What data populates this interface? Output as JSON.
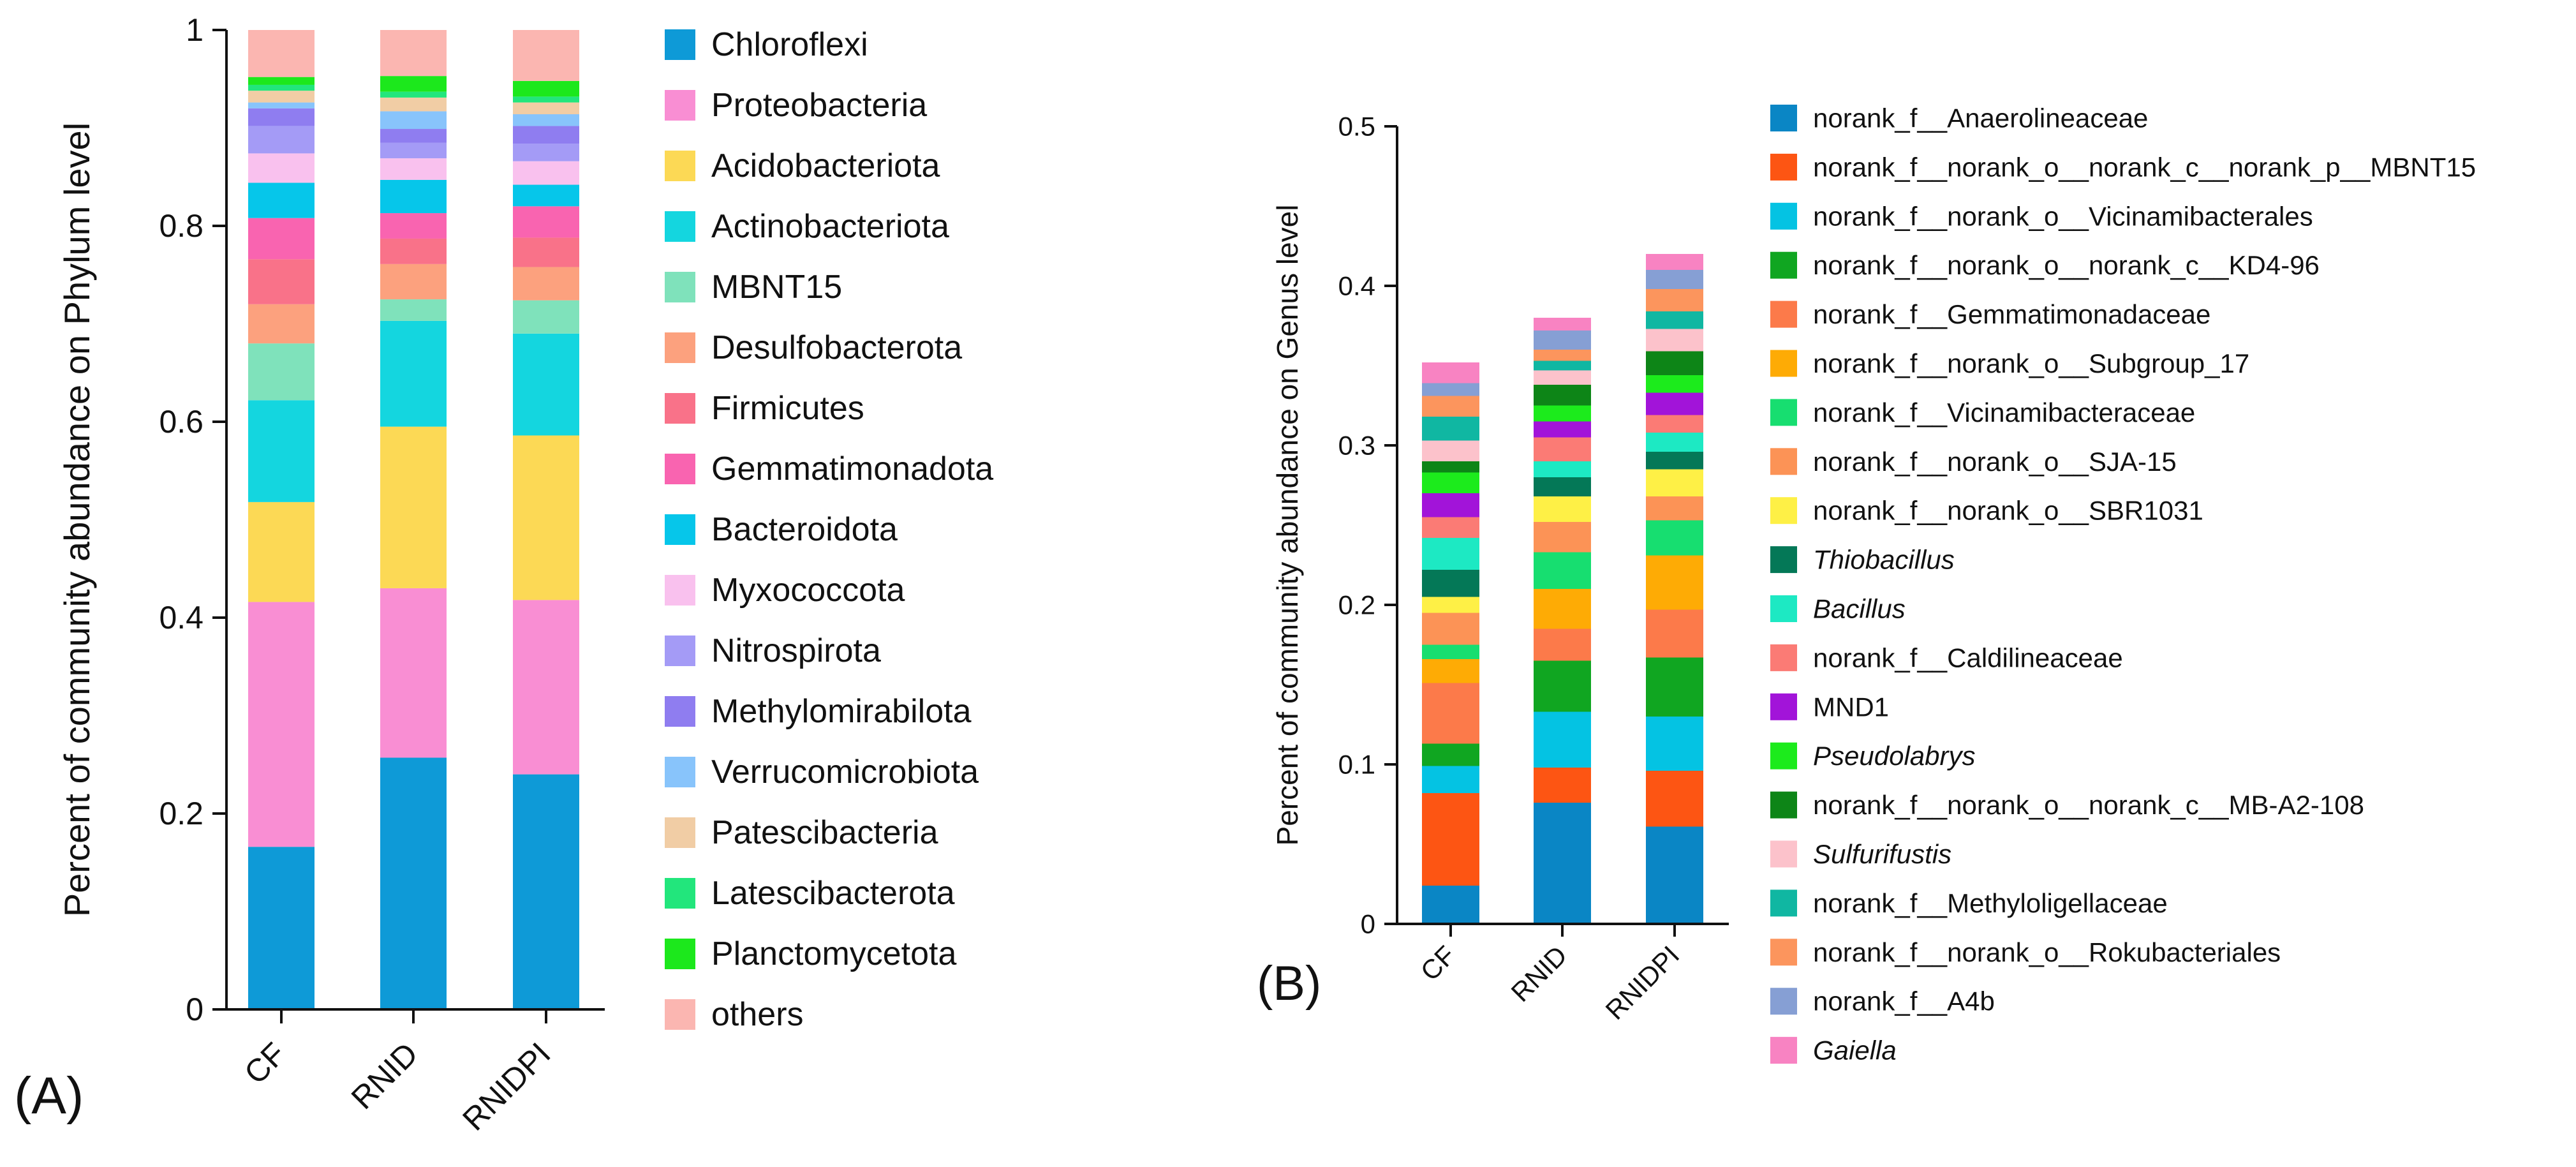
{
  "chart_data": [
    {
      "panel_label": "(A)",
      "type": "bar",
      "stacked": true,
      "ylabel": "Percent of community abundance on Phylum level",
      "xlabel": "",
      "ylim": [
        0,
        1
      ],
      "yticks": [
        0,
        0.2,
        0.4,
        0.6,
        0.8,
        1
      ],
      "ytick_labels": [
        "0",
        "0.2",
        "0.4",
        "0.6",
        "0.8",
        "1"
      ],
      "categories": [
        "CF",
        "RNID",
        "RNIDPI"
      ],
      "legend_position": "right",
      "series": [
        {
          "name": "Chloroflexi",
          "color": "#0e9ad7",
          "values": [
            0.166,
            0.257,
            0.24
          ]
        },
        {
          "name": "Proteobacteria",
          "color": "#f98ed3",
          "values": [
            0.25,
            0.173,
            0.178
          ]
        },
        {
          "name": "Acidobacteriota",
          "color": "#fcd955",
          "values": [
            0.102,
            0.165,
            0.168
          ]
        },
        {
          "name": "Actinobacteriota",
          "color": "#14d6df",
          "values": [
            0.104,
            0.108,
            0.104
          ]
        },
        {
          "name": "MBNT15",
          "color": "#7fe2bb",
          "values": [
            0.058,
            0.022,
            0.034
          ]
        },
        {
          "name": "Desulfobacterota",
          "color": "#fca17e",
          "values": [
            0.04,
            0.036,
            0.034
          ]
        },
        {
          "name": "Firmicutes",
          "color": "#f97289",
          "values": [
            0.046,
            0.026,
            0.03
          ]
        },
        {
          "name": "Gemmatimonadota",
          "color": "#f964b0",
          "values": [
            0.042,
            0.026,
            0.032
          ]
        },
        {
          "name": "Bacteroidota",
          "color": "#06c6ea",
          "values": [
            0.036,
            0.034,
            0.022
          ]
        },
        {
          "name": "Myxococcota",
          "color": "#f9c1ee",
          "values": [
            0.03,
            0.022,
            0.024
          ]
        },
        {
          "name": "Nitrospirota",
          "color": "#a49bf6",
          "values": [
            0.028,
            0.016,
            0.018
          ]
        },
        {
          "name": "Methylomirabilota",
          "color": "#8f7df0",
          "values": [
            0.018,
            0.014,
            0.018
          ]
        },
        {
          "name": "Verrucomicrobiota",
          "color": "#88c4fb",
          "values": [
            0.006,
            0.018,
            0.012
          ]
        },
        {
          "name": "Patescibacteria",
          "color": "#f1cda5",
          "values": [
            0.012,
            0.014,
            0.012
          ]
        },
        {
          "name": "Latescibacterota",
          "color": "#22e67c",
          "values": [
            0.006,
            0.006,
            0.006
          ]
        },
        {
          "name": "Planctomycetota",
          "color": "#1ce81c",
          "values": [
            0.008,
            0.016,
            0.016
          ]
        },
        {
          "name": "others",
          "color": "#fbb6b1",
          "values": [
            0.048,
            0.047,
            0.052
          ]
        }
      ]
    },
    {
      "panel_label": "(B)",
      "type": "bar",
      "stacked": true,
      "ylabel": "Percent of community abundance on Genus level",
      "xlabel": "",
      "ylim": [
        0,
        0.5
      ],
      "yticks": [
        0,
        0.1,
        0.2,
        0.3,
        0.4,
        0.5
      ],
      "ytick_labels": [
        "0",
        "0.1",
        "0.2",
        "0.3",
        "0.4",
        "0.5"
      ],
      "categories": [
        "CF",
        "RNID",
        "RNIDPI"
      ],
      "legend_position": "right",
      "series": [
        {
          "name": "norank_f__Anaerolineaceae",
          "color": "#0a86c5",
          "italic": false,
          "values": [
            0.024,
            0.076,
            0.061
          ]
        },
        {
          "name": "norank_f__norank_o__norank_c__norank_p__MBNT15",
          "color": "#fd5513",
          "italic": false,
          "values": [
            0.058,
            0.022,
            0.035
          ]
        },
        {
          "name": "norank_f__norank_o__Vicinamibacterales",
          "color": "#04c3e3",
          "italic": false,
          "values": [
            0.017,
            0.035,
            0.034
          ]
        },
        {
          "name": "norank_f__norank_o__norank_c__KD4-96",
          "color": "#10a621",
          "italic": false,
          "values": [
            0.014,
            0.032,
            0.037
          ]
        },
        {
          "name": "norank_f__Gemmatimonadaceae",
          "color": "#fc7a4a",
          "italic": false,
          "values": [
            0.038,
            0.02,
            0.03
          ]
        },
        {
          "name": "norank_f__norank_o__Subgroup_17",
          "color": "#feab05",
          "italic": false,
          "values": [
            0.015,
            0.025,
            0.034
          ]
        },
        {
          "name": "norank_f__Vicinamibacteraceae",
          "color": "#17de70",
          "italic": false,
          "values": [
            0.009,
            0.023,
            0.022
          ]
        },
        {
          "name": "norank_f__norank_o__SJA-15",
          "color": "#fc9356",
          "italic": false,
          "values": [
            0.02,
            0.019,
            0.015
          ]
        },
        {
          "name": "norank_f__norank_o__SBR1031",
          "color": "#fef046",
          "italic": false,
          "values": [
            0.01,
            0.016,
            0.017
          ]
        },
        {
          "name": "Thiobacillus",
          "color": "#047857",
          "italic": true,
          "values": [
            0.017,
            0.012,
            0.011
          ]
        },
        {
          "name": "Bacillus",
          "color": "#1de9c3",
          "italic": true,
          "values": [
            0.02,
            0.01,
            0.012
          ]
        },
        {
          "name": "norank_f__Caldilineaceae",
          "color": "#fb7b75",
          "italic": false,
          "values": [
            0.013,
            0.015,
            0.011
          ]
        },
        {
          "name": "MND1",
          "color": "#a214d9",
          "italic": false,
          "values": [
            0.015,
            0.01,
            0.014
          ]
        },
        {
          "name": "Pseudolabrys",
          "color": "#1ceb1c",
          "italic": true,
          "values": [
            0.013,
            0.01,
            0.011
          ]
        },
        {
          "name": "norank_f__norank_o__norank_c__MB-A2-108",
          "color": "#0d8517",
          "italic": false,
          "values": [
            0.007,
            0.013,
            0.015
          ]
        },
        {
          "name": "Sulfurifustis",
          "color": "#fcc2cb",
          "italic": true,
          "values": [
            0.013,
            0.009,
            0.014
          ]
        },
        {
          "name": "norank_f__Methyloligellaceae",
          "color": "#10b7a2",
          "italic": false,
          "values": [
            0.015,
            0.006,
            0.011
          ]
        },
        {
          "name": "norank_f__norank_o__Rokubacteriales",
          "color": "#fc955d",
          "italic": false,
          "values": [
            0.013,
            0.007,
            0.014
          ]
        },
        {
          "name": "norank_f__A4b",
          "color": "#869fd4",
          "italic": false,
          "values": [
            0.008,
            0.012,
            0.012
          ]
        },
        {
          "name": "Gaiella",
          "color": "#f883c2",
          "italic": true,
          "values": [
            0.013,
            0.008,
            0.01
          ]
        }
      ]
    }
  ]
}
